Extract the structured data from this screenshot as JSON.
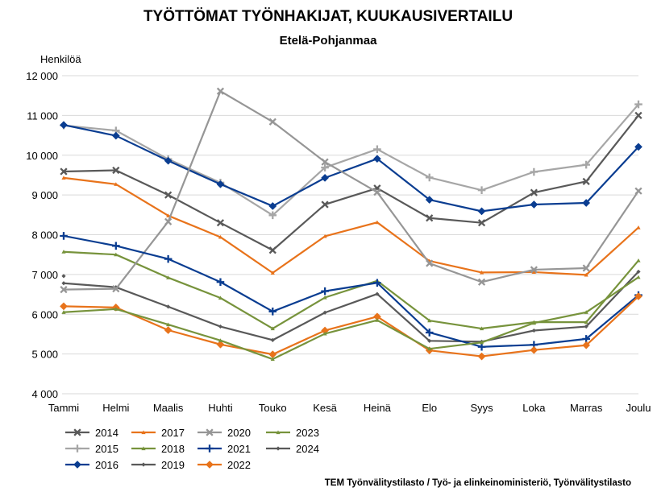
{
  "chart_data": {
    "type": "line",
    "title": "TYÖTTÖMAT TYÖNHAKIJAT, KUUKAUSIVERTAILU",
    "subtitle": "Etelä-Pohjanmaa",
    "ylabel": "Henkilöä",
    "xlabel": "",
    "ylim": [
      4000,
      12000
    ],
    "y_ticks": [
      4000,
      5000,
      6000,
      7000,
      8000,
      9000,
      10000,
      11000,
      12000
    ],
    "y_tick_labels": [
      "4 000",
      "5 000",
      "6 000",
      "7 000",
      "8 000",
      "9 000",
      "10 000",
      "11 000",
      "12 000"
    ],
    "grid": true,
    "legend_position": "bottom-left",
    "categories": [
      "Tammi",
      "Helmi",
      "Maalis",
      "Huhti",
      "Touko",
      "Kesä",
      "Heinä",
      "Elo",
      "Syys",
      "Loka",
      "Marras",
      "Joulu"
    ],
    "series": [
      {
        "name": "2014",
        "color": "#595959",
        "dash": "",
        "marker": "x",
        "values": [
          9590,
          9620,
          9000,
          8300,
          7610,
          8760,
          9170,
          8420,
          8300,
          9060,
          9340,
          11000
        ]
      },
      {
        "name": "2015",
        "color": "#a6a6a6",
        "dash": "",
        "marker": "plus",
        "values": [
          10750,
          10620,
          9900,
          9310,
          8490,
          9690,
          10150,
          9440,
          9120,
          9580,
          9760,
          11280
        ]
      },
      {
        "name": "2016",
        "color": "#0a3d91",
        "dash": "",
        "marker": "diamond",
        "values": [
          10760,
          10490,
          9860,
          9270,
          8720,
          9430,
          9910,
          8880,
          8590,
          8760,
          8800,
          10210
        ]
      },
      {
        "name": "2017",
        "color": "#e8731b",
        "dash": "",
        "marker": "tri",
        "values": [
          9430,
          9270,
          8480,
          7940,
          7040,
          7960,
          8310,
          7340,
          7050,
          7060,
          6990,
          8180
        ]
      },
      {
        "name": "2018",
        "color": "#77933c",
        "dash": "",
        "marker": "tri",
        "values": [
          7570,
          7500,
          6920,
          6410,
          5640,
          6420,
          6840,
          5840,
          5640,
          5800,
          5800,
          7350
        ]
      },
      {
        "name": "2019",
        "color": "#595959",
        "dash": "",
        "marker": "smalldiamond",
        "values": [
          6780,
          6680,
          6190,
          5690,
          5350,
          6040,
          6510,
          5330,
          5310,
          5590,
          5690,
          7070
        ]
      },
      {
        "name": "2020",
        "color": "#969696",
        "dash": "",
        "marker": "x",
        "values": [
          6620,
          6640,
          8330,
          11610,
          10840,
          9830,
          9070,
          7280,
          6810,
          7120,
          7160,
          9100
        ]
      },
      {
        "name": "2021",
        "color": "#0a3d91",
        "dash": "",
        "marker": "plus",
        "values": [
          7970,
          7720,
          7390,
          6810,
          6070,
          6580,
          6790,
          5540,
          5180,
          5230,
          5380,
          6480
        ]
      },
      {
        "name": "2022",
        "color": "#e8731b",
        "dash": "",
        "marker": "diamond",
        "values": [
          6200,
          6170,
          5600,
          5240,
          4990,
          5590,
          5940,
          5090,
          4940,
          5100,
          5220,
          6450
        ]
      },
      {
        "name": "2023",
        "color": "#77933c",
        "dash": "",
        "marker": "tri",
        "values": [
          6050,
          6130,
          5740,
          5340,
          4870,
          5510,
          5850,
          5130,
          5290,
          5780,
          6050,
          6930
        ]
      },
      {
        "name": "2024",
        "color": "#595959",
        "dash": "",
        "marker": "smalldiamond",
        "values": [
          6960,
          null,
          null,
          null,
          null,
          null,
          null,
          null,
          null,
          null,
          null,
          null
        ]
      }
    ],
    "legend_rows": [
      [
        "2014",
        "2017",
        "2020",
        "2023"
      ],
      [
        "2015",
        "2018",
        "2021",
        "2024"
      ],
      [
        "2016",
        "2019",
        "2022"
      ]
    ],
    "source": "TEM Työnvälitystilasto / Työ- ja elinkeinoministeriö, Työnvälitystilasto"
  }
}
